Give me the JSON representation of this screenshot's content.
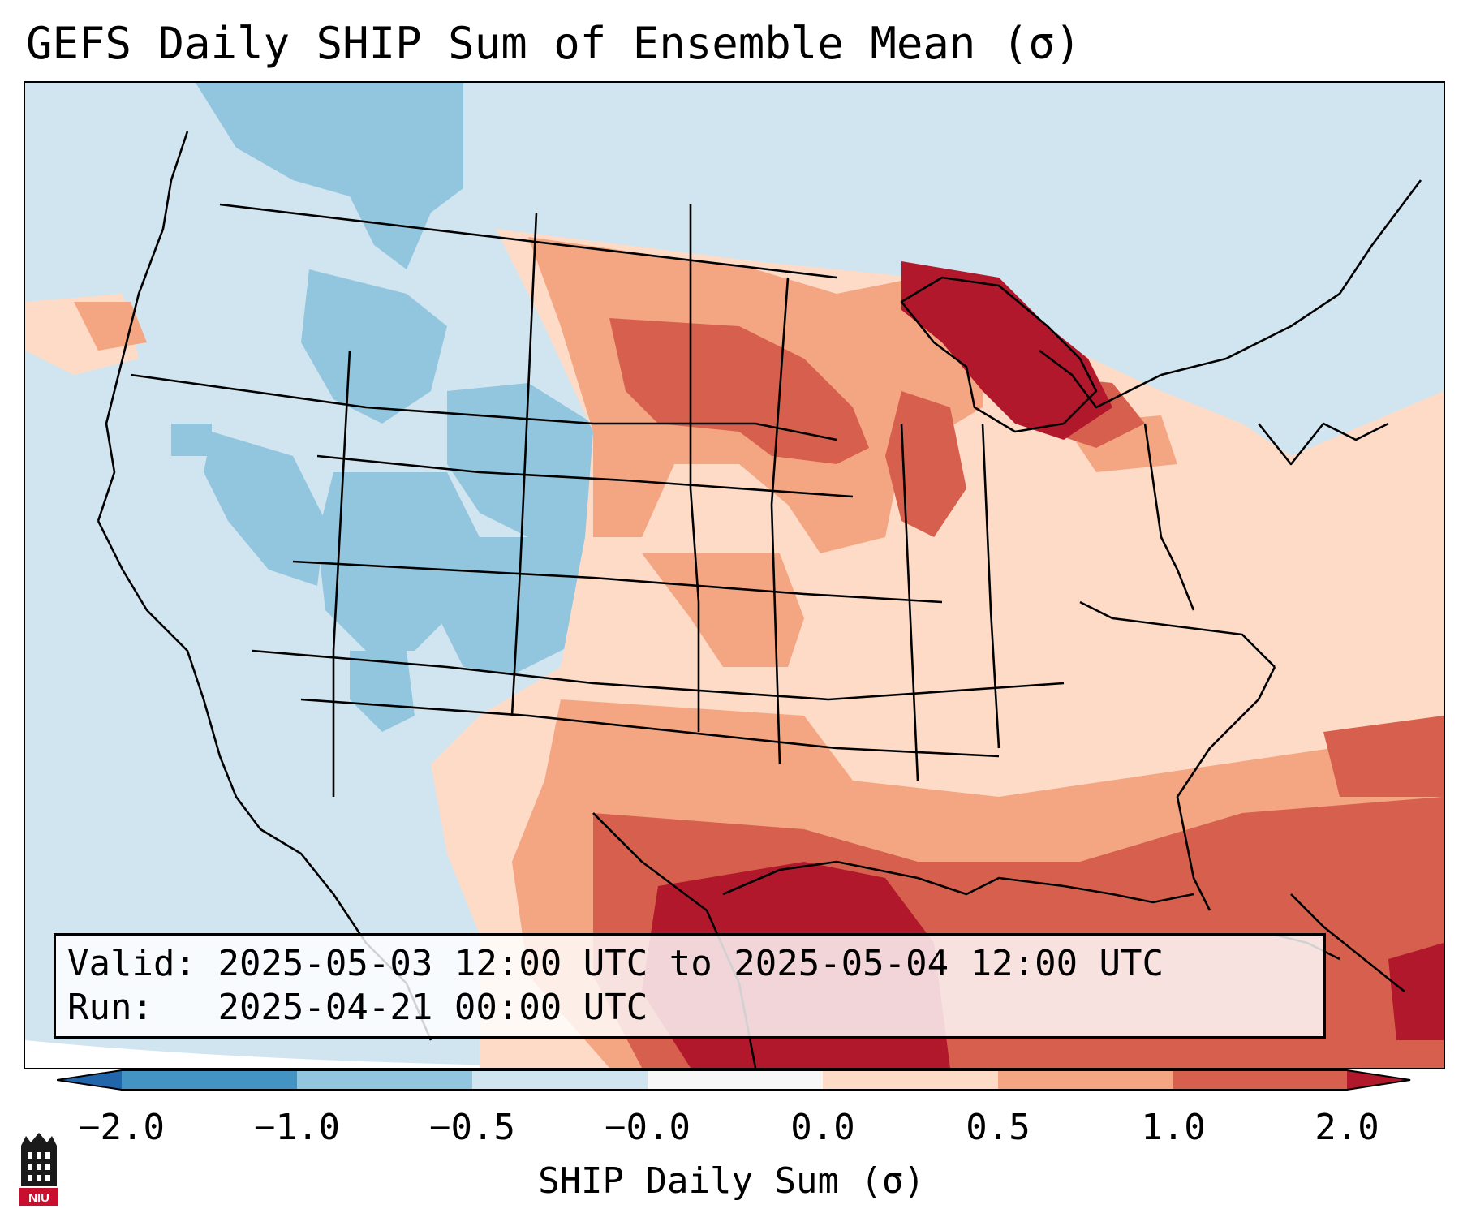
{
  "title": "GEFS Daily SHIP Sum of Ensemble Mean (σ)",
  "info": {
    "valid_label": "Valid:",
    "valid_value": "2025-05-03 12:00 UTC to 2025-05-04 12:00 UTC",
    "run_label": "Run:",
    "run_value": "2025-04-21 00:00 UTC"
  },
  "colorbar": {
    "label": "SHIP Daily Sum (σ)",
    "ticks": [
      "−2.0",
      "−1.0",
      "−0.5",
      "−0.0",
      "0.0",
      "0.5",
      "1.0",
      "2.0"
    ],
    "colors": {
      "extend_low": "#2166ac",
      "lt_-1": "#4393c3",
      "-1_to_-0.5": "#92c5de",
      "-0.5_to_0": "#d1e5f0",
      "neutral": "#f7f7f7",
      "0_to_0.5": "#fddbc7",
      "0.5_to_1": "#f4a582",
      "1_to_2": "#d6604d",
      "gt_2": "#b2182b"
    }
  },
  "map": {
    "projection": "Lambert conformal, CONUS",
    "field": "SHIP daily sum anomaly"
  },
  "logo": {
    "text": "NIU",
    "colors": {
      "red": "#c8102e",
      "black": "#1a1a1a"
    }
  }
}
